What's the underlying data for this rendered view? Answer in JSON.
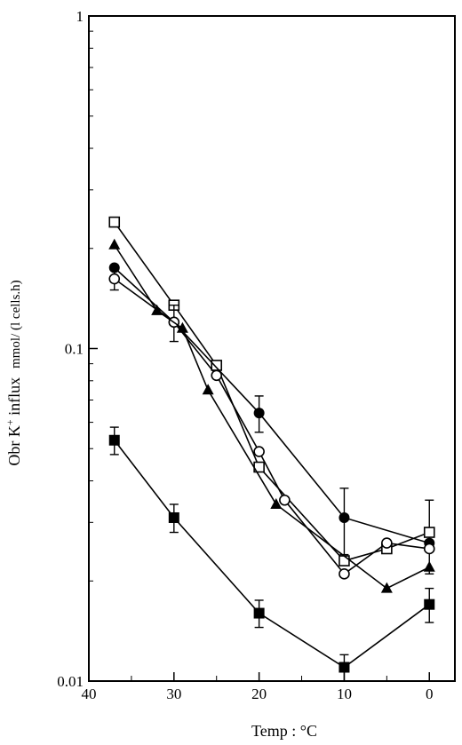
{
  "chart_data": {
    "type": "line",
    "title": "",
    "xlabel": "Temp : °C",
    "ylabel_main": "Obr K",
    "ylabel_sup": "+",
    "ylabel_rest": " influx",
    "ylabel_units": "mmol/ (l cells.h)",
    "x_axis_reversed": true,
    "xlim": [
      40,
      -3
    ],
    "ylim": [
      0.01,
      1
    ],
    "y_scale": "log",
    "x_ticks": [
      40,
      30,
      20,
      10,
      0
    ],
    "x_tick_labels": [
      "40",
      "30",
      "20",
      "10",
      "0"
    ],
    "y_ticks": [
      0.01,
      0.1,
      1
    ],
    "y_tick_labels": [
      "0.01",
      "0.1",
      "1"
    ],
    "grid": false,
    "legend": "none",
    "series": [
      {
        "marker": "open-square",
        "points": [
          {
            "x": 37,
            "y": 0.24
          },
          {
            "x": 30,
            "y": 0.135
          },
          {
            "x": 25,
            "y": 0.089
          },
          {
            "x": 20,
            "y": 0.044
          },
          {
            "x": 10,
            "y": 0.023
          },
          {
            "x": 5,
            "y": 0.025
          },
          {
            "x": 0,
            "y": 0.028,
            "err": 0.007
          }
        ]
      },
      {
        "marker": "filled-circle",
        "points": [
          {
            "x": 37,
            "y": 0.175
          },
          {
            "x": 30,
            "y": 0.12,
            "err": 0.015
          },
          {
            "x": 20,
            "y": 0.064,
            "err": 0.008
          },
          {
            "x": 10,
            "y": 0.031,
            "err": 0.007
          },
          {
            "x": 0,
            "y": 0.026
          }
        ]
      },
      {
        "marker": "open-circle",
        "points": [
          {
            "x": 37,
            "y": 0.162,
            "err": 0.012
          },
          {
            "x": 30,
            "y": 0.12
          },
          {
            "x": 25,
            "y": 0.083
          },
          {
            "x": 20,
            "y": 0.049
          },
          {
            "x": 17,
            "y": 0.035
          },
          {
            "x": 10,
            "y": 0.021
          },
          {
            "x": 5,
            "y": 0.026
          },
          {
            "x": 0,
            "y": 0.025
          }
        ]
      },
      {
        "marker": "filled-triangle",
        "points": [
          {
            "x": 37,
            "y": 0.205
          },
          {
            "x": 32,
            "y": 0.13
          },
          {
            "x": 29,
            "y": 0.115
          },
          {
            "x": 26,
            "y": 0.075
          },
          {
            "x": 18,
            "y": 0.034
          },
          {
            "x": 5,
            "y": 0.019
          },
          {
            "x": 0,
            "y": 0.022
          }
        ]
      },
      {
        "marker": "filled-square",
        "points": [
          {
            "x": 37,
            "y": 0.053,
            "err": 0.005
          },
          {
            "x": 30,
            "y": 0.031,
            "err": 0.003
          },
          {
            "x": 20,
            "y": 0.016,
            "err": 0.0015
          },
          {
            "x": 10,
            "y": 0.011,
            "err": 0.001
          },
          {
            "x": 0,
            "y": 0.017,
            "err": 0.002
          }
        ]
      }
    ]
  }
}
